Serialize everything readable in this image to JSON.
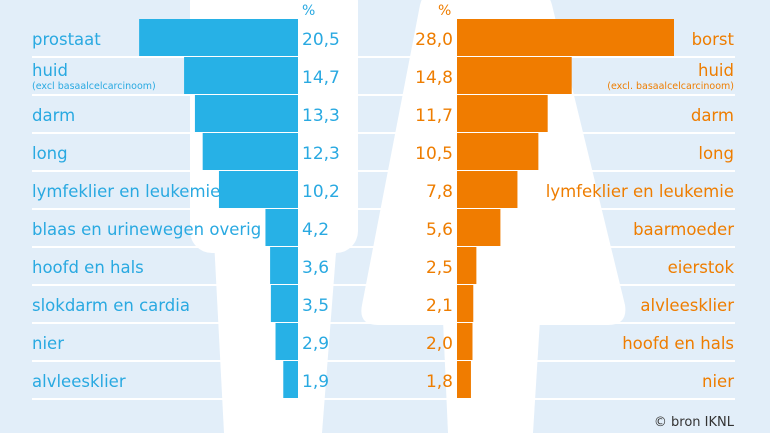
{
  "chart_data": {
    "type": "bar",
    "orientation": "horizontal-mirrored",
    "unit_label": "%",
    "colors": {
      "background": "#e2eef9",
      "men": "#27b1e6",
      "women": "#f07c00",
      "silhouette": "#ffffff",
      "source": "#333333"
    },
    "series": [
      {
        "group": "men",
        "categories": [
          {
            "label": "prostaat"
          },
          {
            "label": "huid",
            "sublabel": "(excl basaalcelcarcinoom)"
          },
          {
            "label": "darm"
          },
          {
            "label": "long"
          },
          {
            "label": "lymfeklier en leukemie"
          },
          {
            "label": "blaas en urinewegen overig"
          },
          {
            "label": "hoofd en hals"
          },
          {
            "label": "slokdarm en cardia"
          },
          {
            "label": "nier"
          },
          {
            "label": "alvleesklier"
          }
        ],
        "values": [
          20.5,
          14.7,
          13.3,
          12.3,
          10.2,
          4.2,
          3.6,
          3.5,
          2.9,
          1.9
        ],
        "value_labels": [
          "20,5",
          "14,7",
          "13,3",
          "12,3",
          "10,2",
          "4,2",
          "3,6",
          "3,5",
          "2,9",
          "1,9"
        ]
      },
      {
        "group": "women",
        "categories": [
          {
            "label": "borst"
          },
          {
            "label": "huid",
            "sublabel": "(excl. basaalcelcarcinoom)"
          },
          {
            "label": "darm"
          },
          {
            "label": "long"
          },
          {
            "label": "lymfeklier en leukemie"
          },
          {
            "label": "baarmoeder"
          },
          {
            "label": "eierstok"
          },
          {
            "label": "alvleesklier"
          },
          {
            "label": "hoofd en hals"
          },
          {
            "label": "nier"
          }
        ],
        "values": [
          28.0,
          14.8,
          11.7,
          10.5,
          7.8,
          5.6,
          2.5,
          2.1,
          2.0,
          1.8
        ],
        "value_labels": [
          "28,0",
          "14,8",
          "11,7",
          "10,5",
          "7,8",
          "5,6",
          "2,5",
          "2,1",
          "2,0",
          "1,8"
        ]
      }
    ],
    "source": "© bron IKNL"
  }
}
